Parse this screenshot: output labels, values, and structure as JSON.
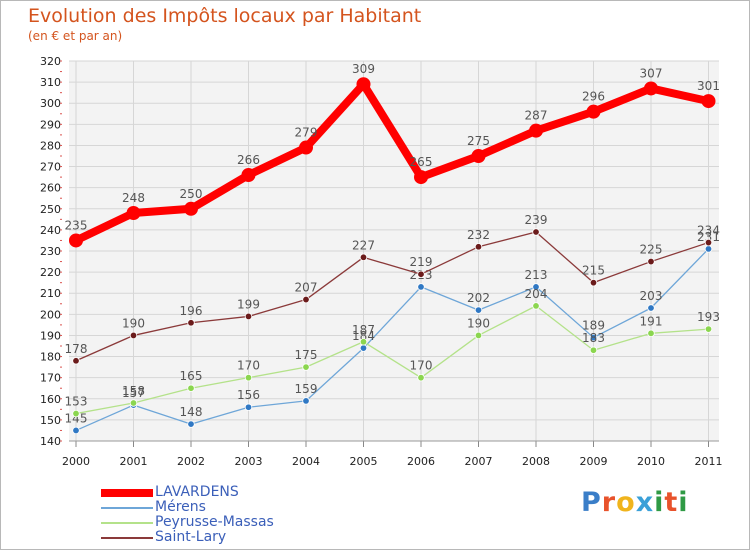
{
  "header": {
    "title": "Evolution des Impôts locaux par Habitant",
    "subtitle": "(en € et par an)"
  },
  "chart_data": {
    "type": "line",
    "title": "Evolution des Impôts locaux par Habitant",
    "subtitle": "(en € et par an)",
    "xlabel": "",
    "ylabel": "",
    "categories": [
      "2000",
      "2001",
      "2002",
      "2003",
      "2004",
      "2005",
      "2006",
      "2007",
      "2008",
      "2009",
      "2010",
      "2011"
    ],
    "ylim": [
      140,
      320
    ],
    "yticks": [
      140,
      150,
      160,
      170,
      180,
      190,
      200,
      210,
      220,
      230,
      240,
      250,
      260,
      270,
      280,
      290,
      300,
      310,
      320
    ],
    "grid": true,
    "legend_position": "bottom-left",
    "series": [
      {
        "name": "LAVARDENS",
        "color": "#ff0000",
        "values": [
          235,
          248,
          250,
          266,
          279,
          309,
          265,
          275,
          287,
          296,
          307,
          301
        ]
      },
      {
        "name": "Mérens",
        "color": "#6ea6d8",
        "values": [
          145,
          157,
          148,
          156,
          159,
          184,
          213,
          202,
          213,
          189,
          203,
          231
        ]
      },
      {
        "name": "Peyrusse-Massas",
        "color": "#b4e28a",
        "values": [
          153,
          158,
          165,
          170,
          175,
          187,
          170,
          190,
          204,
          183,
          191,
          193
        ]
      },
      {
        "name": "Saint-Lary",
        "color": "#8b3a3a",
        "values": [
          178,
          190,
          196,
          199,
          207,
          227,
          219,
          232,
          239,
          215,
          225,
          234
        ]
      }
    ]
  },
  "logo": {
    "text": "Proxiti",
    "letters": [
      {
        "char": "P",
        "color": "#3a7ec8"
      },
      {
        "char": "r",
        "color": "#e8522b"
      },
      {
        "char": "o",
        "color": "#f0b41c"
      },
      {
        "char": "x",
        "color": "#3aa0d8"
      },
      {
        "char": "i",
        "color": "#2f9a45"
      },
      {
        "char": "t",
        "color": "#e8522b"
      },
      {
        "char": "i",
        "color": "#2f9a45"
      }
    ]
  }
}
